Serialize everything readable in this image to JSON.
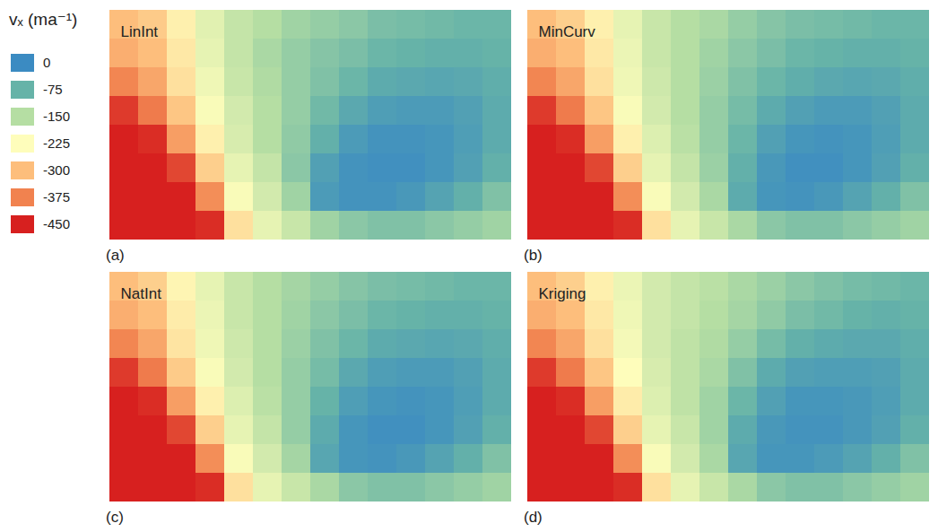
{
  "chart_data": {
    "type": "heatmap",
    "tick_labels": false,
    "colorbar": {
      "label": "vₓ (ma⁻¹)",
      "range": [
        -450,
        0
      ],
      "ticks": [
        0,
        -75,
        -150,
        -225,
        -300,
        -375,
        -450
      ],
      "colors": [
        "#3b8bc2",
        "#66b3a8",
        "#b5dea3",
        "#fefdbb",
        "#fdbe7c",
        "#f1824f",
        "#d7201f"
      ]
    },
    "panels": [
      {
        "letter": "(a)",
        "title": "LinInt",
        "cells": [
          [
            -300,
            -285,
            -240,
            -195,
            -165,
            -150,
            -130,
            -120,
            -110,
            -95,
            -90,
            -85,
            -80,
            -80
          ],
          [
            -320,
            -300,
            -250,
            -200,
            -165,
            -140,
            -120,
            -105,
            -95,
            -80,
            -75,
            -70,
            -70,
            -75
          ],
          [
            -370,
            -330,
            -260,
            -210,
            -170,
            -145,
            -120,
            -100,
            -80,
            -60,
            -55,
            -50,
            -55,
            -65
          ],
          [
            -430,
            -380,
            -290,
            -220,
            -180,
            -150,
            -120,
            -85,
            -55,
            -35,
            -30,
            -30,
            -40,
            -60
          ],
          [
            -450,
            -440,
            -340,
            -240,
            -185,
            -150,
            -115,
            -70,
            -30,
            -15,
            -15,
            -20,
            -35,
            -60
          ],
          [
            -450,
            -450,
            -420,
            -280,
            -200,
            -165,
            -110,
            -40,
            -15,
            -10,
            -10,
            -20,
            -40,
            -70
          ],
          [
            -450,
            -450,
            -450,
            -360,
            -220,
            -180,
            -130,
            -30,
            -15,
            -15,
            -25,
            -45,
            -70,
            -100
          ],
          [
            -450,
            -450,
            -450,
            -440,
            -260,
            -200,
            -170,
            -130,
            -110,
            -100,
            -100,
            -110,
            -120,
            -130
          ]
        ]
      },
      {
        "letter": "(b)",
        "title": "MinCurv",
        "cells": [
          [
            -300,
            -280,
            -240,
            -200,
            -170,
            -150,
            -140,
            -120,
            -105,
            -95,
            -90,
            -85,
            -80,
            -80
          ],
          [
            -320,
            -300,
            -250,
            -205,
            -170,
            -150,
            -130,
            -110,
            -95,
            -80,
            -75,
            -70,
            -70,
            -75
          ],
          [
            -370,
            -330,
            -260,
            -210,
            -175,
            -150,
            -125,
            -100,
            -80,
            -65,
            -55,
            -50,
            -55,
            -65
          ],
          [
            -430,
            -380,
            -290,
            -220,
            -180,
            -150,
            -120,
            -90,
            -60,
            -40,
            -30,
            -30,
            -40,
            -60
          ],
          [
            -450,
            -440,
            -340,
            -240,
            -190,
            -155,
            -120,
            -80,
            -40,
            -20,
            -15,
            -20,
            -35,
            -60
          ],
          [
            -450,
            -450,
            -420,
            -280,
            -200,
            -165,
            -125,
            -70,
            -25,
            -10,
            -10,
            -20,
            -40,
            -70
          ],
          [
            -450,
            -450,
            -450,
            -360,
            -220,
            -180,
            -140,
            -60,
            -20,
            -15,
            -25,
            -45,
            -70,
            -100
          ],
          [
            -450,
            -450,
            -450,
            -440,
            -260,
            -200,
            -170,
            -140,
            -110,
            -100,
            -100,
            -110,
            -120,
            -130
          ]
        ]
      },
      {
        "letter": "(c)",
        "title": "NatInt",
        "cells": [
          [
            -300,
            -280,
            -235,
            -200,
            -170,
            -150,
            -135,
            -120,
            -105,
            -95,
            -90,
            -85,
            -80,
            -80
          ],
          [
            -320,
            -300,
            -245,
            -205,
            -170,
            -150,
            -130,
            -110,
            -95,
            -80,
            -75,
            -70,
            -70,
            -75
          ],
          [
            -370,
            -330,
            -255,
            -210,
            -175,
            -150,
            -125,
            -100,
            -80,
            -60,
            -55,
            -50,
            -55,
            -65
          ],
          [
            -430,
            -380,
            -285,
            -220,
            -180,
            -150,
            -120,
            -90,
            -55,
            -35,
            -30,
            -30,
            -40,
            -60
          ],
          [
            -450,
            -440,
            -340,
            -240,
            -190,
            -155,
            -120,
            -75,
            -35,
            -20,
            -15,
            -20,
            -35,
            -60
          ],
          [
            -450,
            -450,
            -420,
            -280,
            -200,
            -165,
            -120,
            -60,
            -20,
            -10,
            -10,
            -20,
            -40,
            -70
          ],
          [
            -450,
            -450,
            -450,
            -360,
            -220,
            -180,
            -135,
            -50,
            -20,
            -15,
            -25,
            -45,
            -70,
            -100
          ],
          [
            -450,
            -450,
            -450,
            -440,
            -260,
            -200,
            -170,
            -140,
            -110,
            -100,
            -100,
            -110,
            -120,
            -130
          ]
        ]
      },
      {
        "letter": "(d)",
        "title": "Kriging",
        "cells": [
          [
            -300,
            -280,
            -240,
            -205,
            -180,
            -165,
            -155,
            -140,
            -125,
            -110,
            -100,
            -90,
            -85,
            -80
          ],
          [
            -320,
            -300,
            -250,
            -210,
            -180,
            -165,
            -150,
            -135,
            -115,
            -95,
            -85,
            -75,
            -70,
            -75
          ],
          [
            -370,
            -330,
            -260,
            -215,
            -180,
            -160,
            -145,
            -120,
            -90,
            -70,
            -60,
            -55,
            -55,
            -65
          ],
          [
            -430,
            -380,
            -290,
            -225,
            -185,
            -160,
            -140,
            -100,
            -60,
            -40,
            -35,
            -35,
            -40,
            -60
          ],
          [
            -450,
            -440,
            -340,
            -245,
            -190,
            -160,
            -130,
            -80,
            -40,
            -20,
            -20,
            -25,
            -35,
            -60
          ],
          [
            -450,
            -450,
            -420,
            -280,
            -200,
            -170,
            -130,
            -60,
            -25,
            -15,
            -15,
            -25,
            -40,
            -70
          ],
          [
            -450,
            -450,
            -450,
            -360,
            -220,
            -180,
            -140,
            -50,
            -20,
            -20,
            -30,
            -45,
            -70,
            -100
          ],
          [
            -450,
            -450,
            -450,
            -440,
            -260,
            -200,
            -170,
            -140,
            -110,
            -100,
            -100,
            -110,
            -120,
            -130
          ]
        ]
      }
    ]
  }
}
